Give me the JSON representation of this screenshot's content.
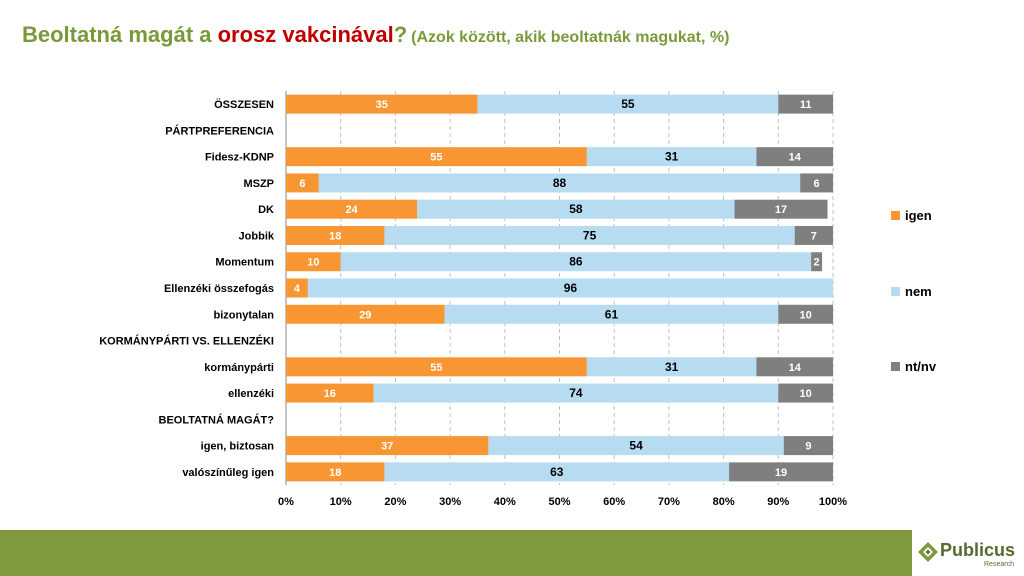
{
  "title": {
    "part1": "Beoltatná magát a ",
    "part2": "orosz vakcinával",
    "part3": "?",
    "subtitle": "(Azok között, akik beoltatnák magukat, %)"
  },
  "logo": {
    "name": "Publicus",
    "sub": "Research"
  },
  "colors": {
    "igen": "#f79633",
    "nem": "#b7dcf2",
    "ntnv": "#7f7f7f",
    "grid": "#c0c0c0",
    "footer": "#7f9a3c",
    "title_green": "#7a9a3a",
    "title_red": "#c00000"
  },
  "chart_data": {
    "type": "bar",
    "orientation": "horizontal",
    "stacked": true,
    "title": "Beoltatná magát a orosz vakcinával? (Azok között, akik beoltatnák magukat, %)",
    "xlim": [
      0,
      100
    ],
    "xticks": [
      "0%",
      "10%",
      "20%",
      "30%",
      "40%",
      "50%",
      "60%",
      "70%",
      "80%",
      "90%",
      "100%"
    ],
    "grid": true,
    "legend_position": "right",
    "categories": [
      "ÖSSZESEN",
      "PÁRTPREFERENCIA",
      "Fidesz-KDNP",
      "MSZP",
      "DK",
      "Jobbik",
      "Momentum",
      "Ellenzéki összefogás",
      "bizonytalan",
      "KORMÁNYPÁRTI VS. ELLENZÉKI",
      "kormánypárti",
      "ellenzéki",
      "BEOLTATNÁ MAGÁT?",
      "igen, biztosan",
      "valószínűleg igen"
    ],
    "series": [
      {
        "name": "igen",
        "values": [
          35,
          null,
          55,
          6,
          24,
          18,
          10,
          4,
          29,
          null,
          55,
          16,
          null,
          37,
          18
        ]
      },
      {
        "name": "nem",
        "values": [
          55,
          null,
          31,
          88,
          58,
          75,
          86,
          96,
          61,
          null,
          31,
          74,
          null,
          54,
          63
        ]
      },
      {
        "name": "nt/nv",
        "values": [
          11,
          null,
          14,
          6,
          17,
          7,
          2,
          null,
          10,
          null,
          14,
          10,
          null,
          9,
          19
        ]
      }
    ]
  }
}
